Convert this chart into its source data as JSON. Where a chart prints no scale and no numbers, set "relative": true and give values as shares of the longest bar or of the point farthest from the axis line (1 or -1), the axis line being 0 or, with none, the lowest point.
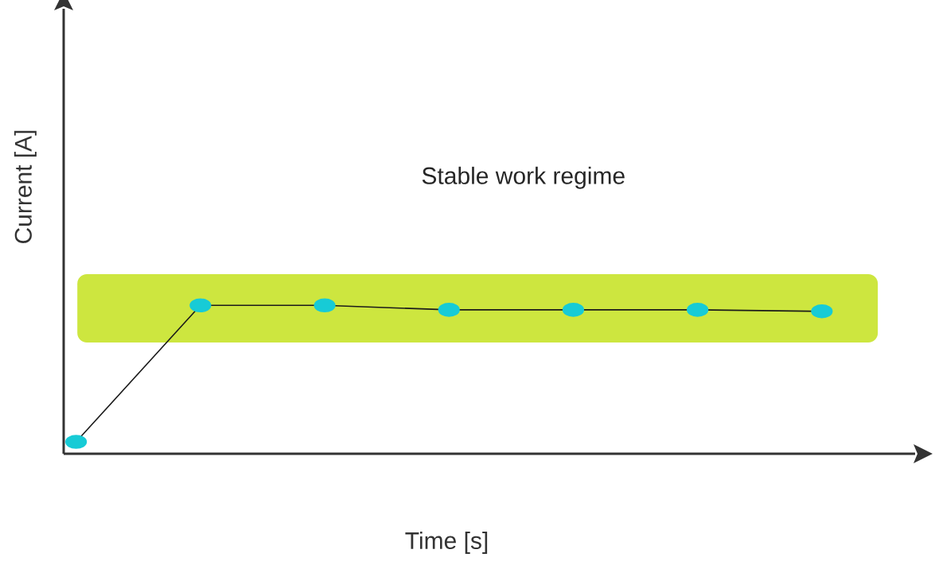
{
  "chart_data": {
    "type": "line",
    "relative": true,
    "xlabel": "Time [s]",
    "ylabel": "Current [A]",
    "categories": [
      null,
      null,
      null,
      null,
      null,
      null,
      null
    ],
    "series": [
      {
        "color": "#1a1a1a",
        "values": [
          0.08,
          1,
          1,
          0.97,
          0.97,
          0.97,
          0.96
        ]
      }
    ],
    "marker": "circle",
    "bands": [
      {
        "axis": "y",
        "from": 0.75,
        "to": 1.21,
        "color": "#cde63f"
      }
    ],
    "annotations": [
      "Stable work regime"
    ]
  }
}
